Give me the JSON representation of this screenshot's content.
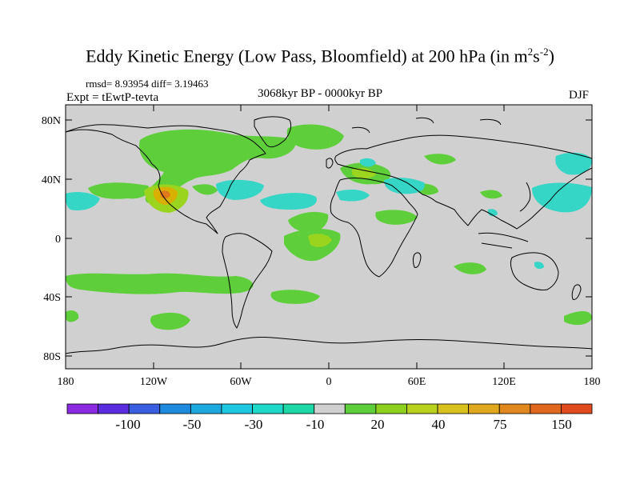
{
  "header": {
    "title_main": "Eddy Kinetic Energy (Low Pass, Bloomfield) at 200 hPa (in m",
    "title_sup1": "2",
    "title_mid": "s",
    "title_sup2": "-2",
    "title_end": ")",
    "stats": "rmsd= 8.93954 diff= 3.19463",
    "experiment": "Expt = tEwtP-tevta",
    "period": "3068kyr BP - 0000kyr BP",
    "season": "DJF"
  },
  "map": {
    "lat_labels": [
      "80N",
      "40N",
      "0",
      "40S",
      "80S"
    ],
    "lon_labels": [
      "180",
      "120W",
      "60W",
      "0",
      "60E",
      "120E",
      "180"
    ],
    "background_color": "#d0d0d0",
    "anomaly_regions": [
      {
        "name": "N Atlantic positive",
        "color": "#5ecf3a"
      },
      {
        "name": "SW USA maximum",
        "color": "#d9b000"
      },
      {
        "name": "Mexico core",
        "color": "#e0781e"
      },
      {
        "name": "Subtropical N Atlantic negative",
        "color": "#35d6c6"
      },
      {
        "name": "NW Pacific negative",
        "color": "#35d6c6"
      },
      {
        "name": "Southern Ocean positive",
        "color": "#5ecf3a"
      }
    ]
  },
  "colorbar": {
    "colors": [
      "#8a2be2",
      "#5a2ee0",
      "#3a5ee0",
      "#1e8ae0",
      "#1ea8e0",
      "#1ec8e0",
      "#1ed8c8",
      "#1ed8a8",
      "#d0d0d0",
      "#5ecf3a",
      "#8ed01e",
      "#b8d01e",
      "#d8c01e",
      "#e0a81e",
      "#e0881e",
      "#e0681e",
      "#e04a1e"
    ],
    "labels": [
      "-100",
      "-50",
      "-30",
      "-10",
      "20",
      "40",
      "75",
      "150"
    ]
  }
}
